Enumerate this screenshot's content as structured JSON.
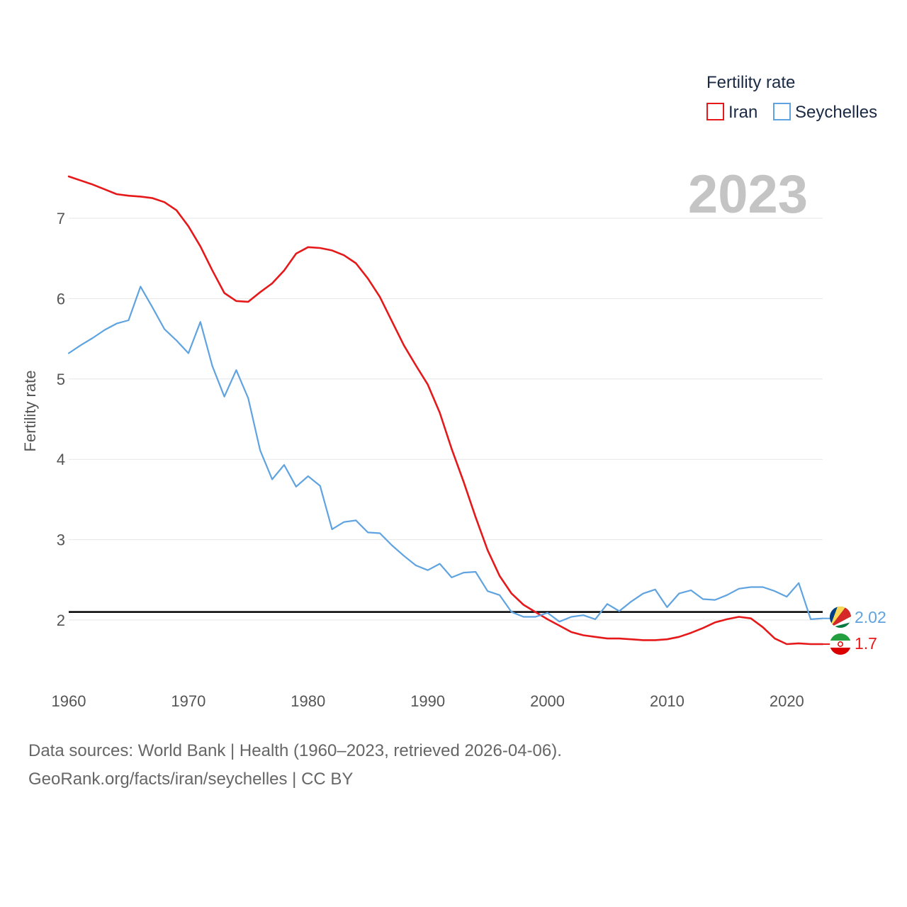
{
  "footer": {
    "sources": "Data sources: World Bank | Health (1960–2023, retrieved 2026-04-06).",
    "credit": "GeoRank.org/facts/iran/seychelles | CC BY"
  },
  "chart_data": {
    "type": "line",
    "title": "",
    "year_label": "2023",
    "xlabel": "",
    "ylabel": "Fertility rate",
    "xlim": [
      1960,
      2023
    ],
    "ylim": [
      1.4,
      7.6
    ],
    "x_ticks": [
      1960,
      1970,
      1980,
      1990,
      2000,
      2010,
      2020
    ],
    "y_ticks": [
      2,
      3,
      4,
      5,
      6,
      7
    ],
    "grid": true,
    "legend": {
      "title": "Fertility rate",
      "position": "top-right"
    },
    "reference_line": {
      "y": 2.1,
      "color": "#000000"
    },
    "x": [
      1960,
      1961,
      1962,
      1963,
      1964,
      1965,
      1966,
      1967,
      1968,
      1969,
      1970,
      1971,
      1972,
      1973,
      1974,
      1975,
      1976,
      1977,
      1978,
      1979,
      1980,
      1981,
      1982,
      1983,
      1984,
      1985,
      1986,
      1987,
      1988,
      1989,
      1990,
      1991,
      1992,
      1993,
      1994,
      1995,
      1996,
      1997,
      1998,
      1999,
      2000,
      2001,
      2002,
      2003,
      2004,
      2005,
      2006,
      2007,
      2008,
      2009,
      2010,
      2011,
      2012,
      2013,
      2014,
      2015,
      2016,
      2017,
      2018,
      2019,
      2020,
      2021,
      2022,
      2023
    ],
    "series": [
      {
        "name": "Iran",
        "color": "#e6191a",
        "end_label": "1.7",
        "values": [
          7.52,
          7.47,
          7.42,
          7.36,
          7.3,
          7.28,
          7.27,
          7.25,
          7.2,
          7.1,
          6.9,
          6.65,
          6.35,
          6.07,
          5.97,
          5.96,
          6.08,
          6.19,
          6.35,
          6.56,
          6.64,
          6.63,
          6.6,
          6.54,
          6.44,
          6.25,
          6.02,
          5.72,
          5.42,
          5.17,
          4.93,
          4.58,
          4.13,
          3.72,
          3.28,
          2.87,
          2.55,
          2.33,
          2.19,
          2.1,
          2.01,
          1.93,
          1.85,
          1.81,
          1.79,
          1.77,
          1.77,
          1.76,
          1.75,
          1.75,
          1.76,
          1.79,
          1.84,
          1.9,
          1.97,
          2.01,
          2.04,
          2.02,
          1.91,
          1.77,
          1.7,
          1.71,
          1.7,
          1.7
        ]
      },
      {
        "name": "Seychelles",
        "color": "#5fa3e0",
        "end_label": "2.02",
        "values": [
          5.32,
          5.42,
          5.51,
          5.61,
          5.69,
          5.73,
          6.15,
          5.89,
          5.62,
          5.48,
          5.32,
          5.71,
          5.16,
          4.78,
          5.11,
          4.76,
          4.11,
          3.75,
          3.93,
          3.66,
          3.79,
          3.67,
          3.13,
          3.22,
          3.24,
          3.09,
          3.08,
          2.93,
          2.8,
          2.68,
          2.62,
          2.7,
          2.53,
          2.59,
          2.6,
          2.36,
          2.31,
          2.1,
          2.04,
          2.04,
          2.09,
          1.98,
          2.04,
          2.06,
          2.01,
          2.2,
          2.11,
          2.23,
          2.33,
          2.38,
          2.16,
          2.33,
          2.37,
          2.26,
          2.25,
          2.31,
          2.39,
          2.41,
          2.41,
          2.36,
          2.29,
          2.46,
          2.01,
          2.02
        ]
      }
    ]
  }
}
